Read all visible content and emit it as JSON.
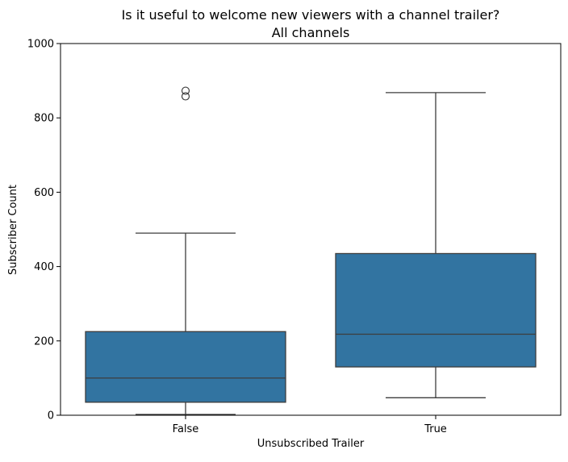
{
  "chart_data": {
    "type": "box",
    "title": "Is it useful to welcome new viewers with a channel trailer?",
    "subtitle": "All channels",
    "xlabel": "Unsubscribed Trailer",
    "ylabel": "Subscriber Count",
    "ylim": [
      0,
      1000
    ],
    "yticks": [
      0,
      200,
      400,
      600,
      800,
      1000
    ],
    "categories": [
      "False",
      "True"
    ],
    "boxes": [
      {
        "category": "False",
        "whisker_low": 2,
        "q1": 35,
        "median": 100,
        "q3": 225,
        "whisker_high": 490,
        "outliers": [
          858,
          873
        ]
      },
      {
        "category": "True",
        "whisker_low": 47,
        "q1": 130,
        "median": 218,
        "q3": 435,
        "whisker_high": 868,
        "outliers": []
      }
    ],
    "box_color": "#3274a1",
    "line_color": "#3d3d3d",
    "grid": false,
    "legend": "none"
  }
}
